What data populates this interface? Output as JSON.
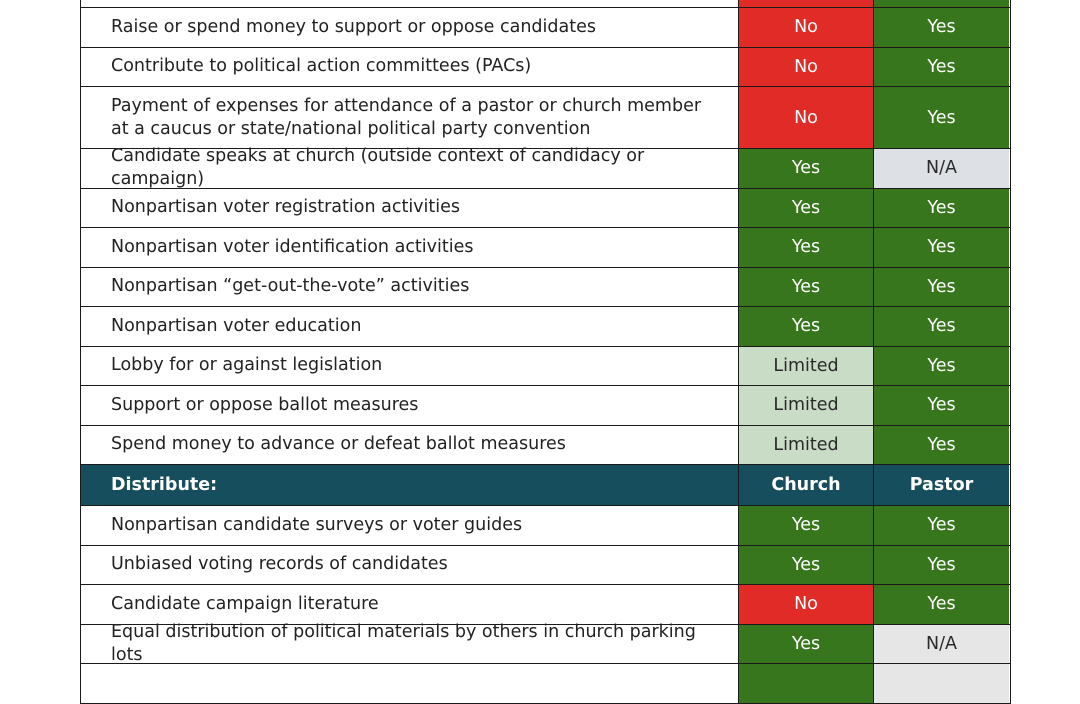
{
  "rows_top": [
    {
      "label": "",
      "church": "",
      "church_status": "no",
      "pastor": "",
      "pastor_status": "yes",
      "height": 46
    },
    {
      "label": "Raise or spend money to support or oppose candidates",
      "church": "No",
      "church_status": "no",
      "pastor": "Yes",
      "pastor_status": "yes"
    },
    {
      "label": "Contribute to political action committees (PACs)",
      "church": "No",
      "church_status": "no",
      "pastor": "Yes",
      "pastor_status": "yes"
    },
    {
      "label": "Payment of expenses for attendance of a pastor or church member at a caucus or state/national political party convention",
      "church": "No",
      "church_status": "no",
      "pastor": "Yes",
      "pastor_status": "yes"
    },
    {
      "label": "Candidate speaks at church (outside context of candidacy or campaign)",
      "church": "Yes",
      "church_status": "yes",
      "pastor": "N/A",
      "pastor_status": "na"
    },
    {
      "label": "Nonpartisan voter registration activities",
      "church": "Yes",
      "church_status": "yes",
      "pastor": "Yes",
      "pastor_status": "yes"
    },
    {
      "label": "Nonpartisan voter identification activities",
      "church": "Yes",
      "church_status": "yes",
      "pastor": "Yes",
      "pastor_status": "yes"
    },
    {
      "label": "Nonpartisan “get-out-the-vote” activities",
      "church": "Yes",
      "church_status": "yes",
      "pastor": "Yes",
      "pastor_status": "yes"
    },
    {
      "label": "Nonpartisan voter education",
      "church": "Yes",
      "church_status": "yes",
      "pastor": "Yes",
      "pastor_status": "yes"
    },
    {
      "label": "Lobby for or against legislation",
      "church": "Limited",
      "church_status": "limited",
      "pastor": "Yes",
      "pastor_status": "yes"
    },
    {
      "label": "Support or oppose ballot measures",
      "church": "Limited",
      "church_status": "limited",
      "pastor": "Yes",
      "pastor_status": "yes"
    },
    {
      "label": "Spend money to advance or defeat ballot measures",
      "church": "Limited",
      "church_status": "limited",
      "pastor": "Yes",
      "pastor_status": "yes"
    }
  ],
  "section_header": {
    "label": "Distribute:",
    "church": "Church",
    "pastor": "Pastor"
  },
  "rows_bottom": [
    {
      "label": "Nonpartisan candidate surveys or voter guides",
      "church": "Yes",
      "church_status": "yes",
      "pastor": "Yes",
      "pastor_status": "yes"
    },
    {
      "label": "Unbiased voting records of candidates",
      "church": "Yes",
      "church_status": "yes",
      "pastor": "Yes",
      "pastor_status": "yes"
    },
    {
      "label": "Candidate campaign literature",
      "church": "No",
      "church_status": "no",
      "pastor": "Yes",
      "pastor_status": "yes"
    },
    {
      "label": "Equal distribution of political materials by others in church parking lots",
      "church": "Yes",
      "church_status": "yes",
      "pastor": "N/A",
      "pastor_status": "na-gray"
    },
    {
      "label": "",
      "church": "",
      "church_status": "yes",
      "pastor": "",
      "pastor_status": "na-gray"
    }
  ],
  "colors": {
    "yes": "#38761d",
    "no": "#e02b27",
    "limited": "#c9dcc6",
    "na": "#dde1e6",
    "header": "#164e5e"
  }
}
